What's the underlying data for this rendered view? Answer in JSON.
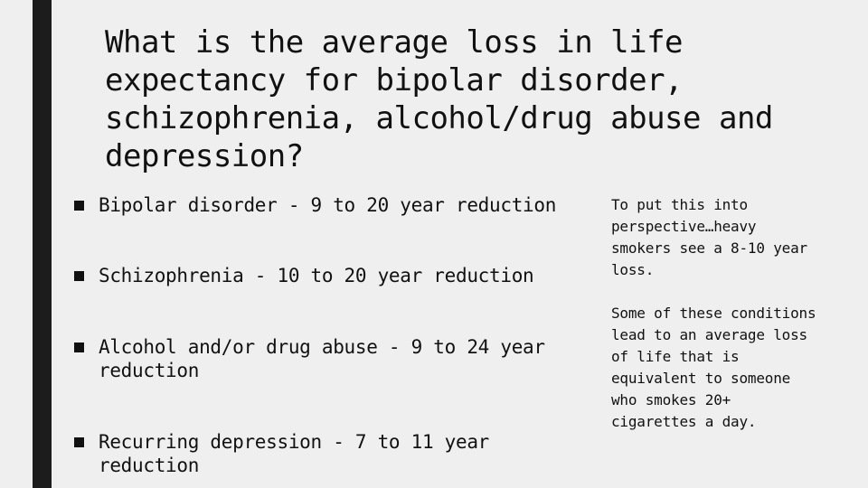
{
  "slide": {
    "title": "What is the average loss in life\nexpectancy for bipolar disorder,\nschizophrenia, alcohol/drug abuse and\ndepression?",
    "bullets": [
      {
        "text": "Bipolar disorder - 9 to 20 year reduction"
      },
      {
        "text": "Schizophrenia - 10 to 20 year reduction"
      },
      {
        "text": "Alcohol and/or drug abuse - 9 to 24 year\nreduction"
      },
      {
        "text": "Recurring depression - 7 to 11 year reduction"
      }
    ],
    "side_notes": [
      {
        "text": "To put this into\nperspective…heavy\nsmokers see a 8-10 year\nloss."
      },
      {
        "text": "Some of these conditions\nlead to an average loss\nof life that is\nequivalent to someone\nwho smokes 20+\ncigarettes a day."
      }
    ]
  }
}
